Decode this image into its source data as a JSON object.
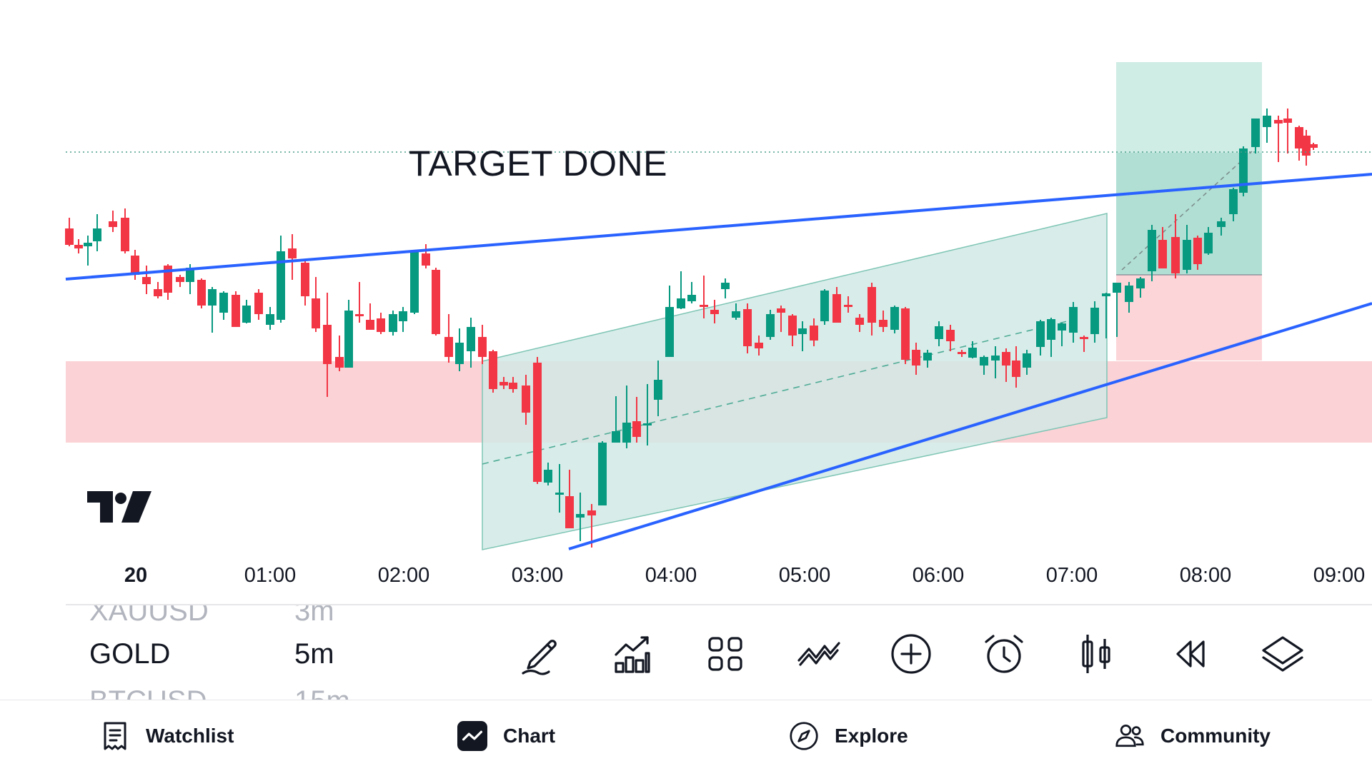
{
  "chart": {
    "annotation_text": "TARGET DONE",
    "up_color": "#089981",
    "down_color": "#f23645",
    "trendline_color": "#2962ff",
    "zone_color": "#fbd3d6",
    "channel_color": "#cfe9e4"
  },
  "time_axis": {
    "labels": [
      "20",
      "01:00",
      "02:00",
      "03:00",
      "04:00",
      "05:00",
      "06:00",
      "07:00",
      "08:00",
      "09:00"
    ]
  },
  "symbol_picker": {
    "prev_symbol": "XAUUSD",
    "prev_timeframe": "3m",
    "current_symbol": "GOLD",
    "current_timeframe": "5m",
    "next_symbol": "BTCUSD",
    "next_timeframe": "15m"
  },
  "toolbar": {
    "tools": [
      "pencil-icon",
      "indicators-icon",
      "grid-icon",
      "patterns-icon",
      "add-icon",
      "alert-icon",
      "candles-icon",
      "replay-icon",
      "layers-icon"
    ]
  },
  "bottom_nav": {
    "watchlist": "Watchlist",
    "chart": "Chart",
    "explore": "Explore",
    "community": "Community"
  }
}
